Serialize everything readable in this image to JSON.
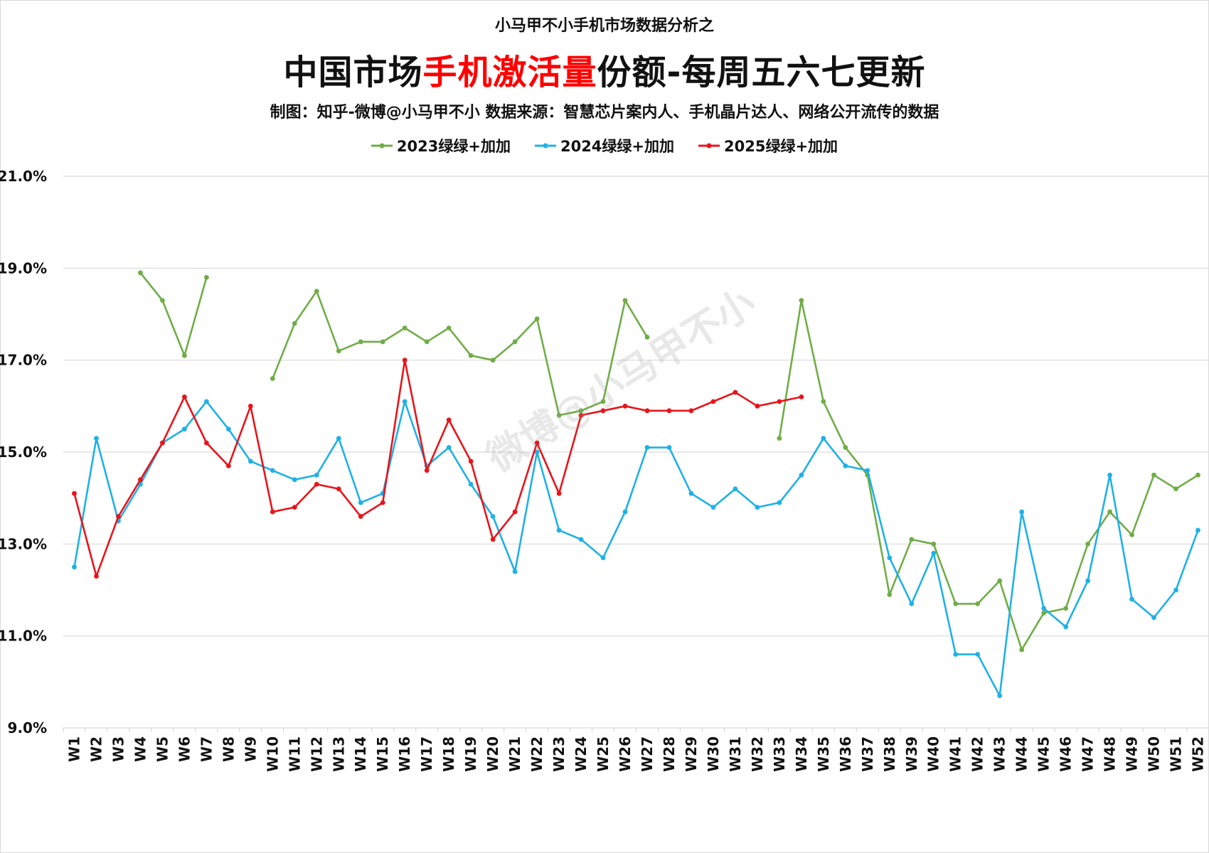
{
  "header": {
    "kicker": "小马甲不小手机市场数据分析之",
    "title_part1": "中国市场",
    "title_highlight": "手机激活量",
    "title_part2": "份额-每周五六七更新",
    "credit": "制图：知乎-微博@小马甲不小    数据来源：智慧芯片案内人、手机晶片达人、网络公开流传的数据"
  },
  "watermark": "微博@小马甲不小",
  "colors": {
    "s2023": "#70ad47",
    "s2024": "#1fb1e6",
    "s2025": "#e8141b",
    "grid": "#d9d9d9"
  },
  "chart_data": {
    "type": "line",
    "title": "中国市场手机激活量份额-每周五六七更新",
    "ylim": [
      9.0,
      21.0
    ],
    "yticks": [
      "9.0%",
      "11.0%",
      "13.0%",
      "15.0%",
      "17.0%",
      "19.0%",
      "21.0%"
    ],
    "yticks_values": [
      9,
      11,
      13,
      15,
      17,
      19,
      21
    ],
    "grid": true,
    "legend_position": "top",
    "categories": [
      "W1",
      "W2",
      "W3",
      "W4",
      "W5",
      "W6",
      "W7",
      "W8",
      "W9",
      "W10",
      "W11",
      "W12",
      "W13",
      "W14",
      "W15",
      "W16",
      "W17",
      "W18",
      "W19",
      "W20",
      "W21",
      "W22",
      "W23",
      "W24",
      "W25",
      "W26",
      "W27",
      "W28",
      "W29",
      "W30",
      "W31",
      "W32",
      "W33",
      "W34",
      "W35",
      "W36",
      "W37",
      "W38",
      "W39",
      "W40",
      "W41",
      "W42",
      "W43",
      "W44",
      "W45",
      "W46",
      "W47",
      "W48",
      "W49",
      "W50",
      "W51",
      "W52"
    ],
    "series": [
      {
        "name": "2023绿绿+加加",
        "color": "#70ad47",
        "values": [
          null,
          null,
          null,
          18.9,
          18.3,
          17.1,
          18.8,
          null,
          null,
          16.6,
          17.8,
          18.5,
          17.2,
          17.4,
          17.4,
          17.7,
          17.4,
          17.7,
          17.1,
          17.0,
          17.4,
          17.9,
          15.8,
          15.9,
          16.1,
          18.3,
          17.5,
          null,
          null,
          null,
          null,
          null,
          15.3,
          18.3,
          16.1,
          15.1,
          14.5,
          11.9,
          13.1,
          13.0,
          11.7,
          11.7,
          12.2,
          10.7,
          11.5,
          11.6,
          13.0,
          13.7,
          13.2,
          14.5,
          14.2,
          14.5
        ]
      },
      {
        "name": "2024绿绿+加加",
        "color": "#1fb1e6",
        "values": [
          12.5,
          15.3,
          13.5,
          14.3,
          15.2,
          15.5,
          16.1,
          15.5,
          14.8,
          14.6,
          14.4,
          14.5,
          15.3,
          13.9,
          14.1,
          16.1,
          14.7,
          15.1,
          14.3,
          13.6,
          12.4,
          15.0,
          13.3,
          13.1,
          12.7,
          13.7,
          15.1,
          15.1,
          14.1,
          13.8,
          14.2,
          13.8,
          13.9,
          14.5,
          15.3,
          14.7,
          14.6,
          12.7,
          11.7,
          12.8,
          10.6,
          10.6,
          9.7,
          13.7,
          11.6,
          11.2,
          12.2,
          14.5,
          11.8,
          11.4,
          12.0,
          13.3
        ]
      },
      {
        "name": "2025绿绿+加加",
        "color": "#e8141b",
        "values": [
          14.1,
          12.3,
          13.6,
          14.4,
          15.2,
          16.2,
          15.2,
          14.7,
          16.0,
          13.7,
          13.8,
          14.3,
          14.2,
          13.6,
          13.9,
          17.0,
          14.6,
          15.7,
          14.8,
          13.1,
          13.7,
          15.2,
          14.1,
          15.8,
          15.9,
          16.0,
          15.9,
          15.9,
          15.9,
          16.1,
          16.3,
          16.0,
          16.1,
          16.2,
          null,
          null,
          null,
          null,
          null,
          null,
          null,
          null,
          null,
          null,
          null,
          null,
          null,
          null,
          null,
          null,
          null,
          null
        ]
      }
    ]
  }
}
